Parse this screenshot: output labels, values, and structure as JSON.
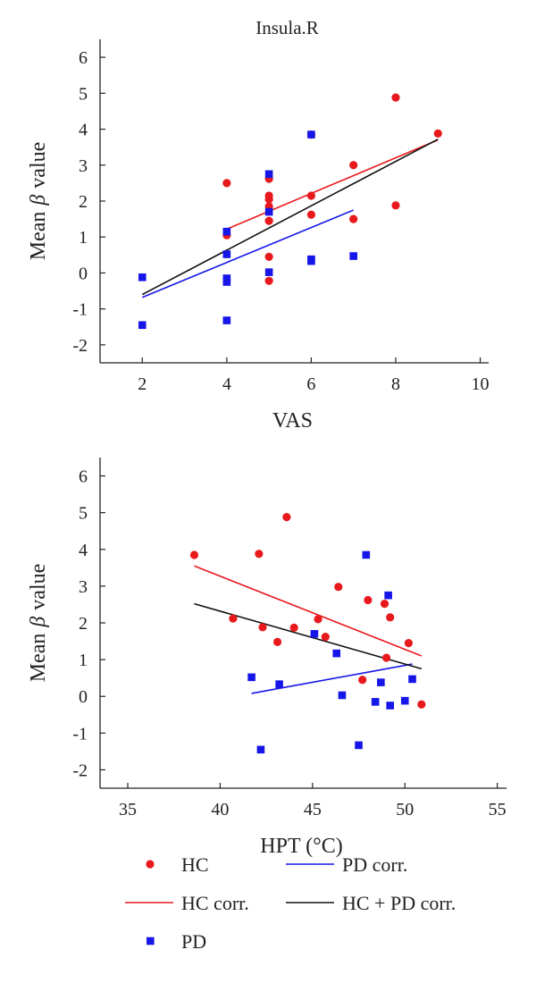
{
  "colors": {
    "hc": "#e8191c",
    "pd": "#1616e8",
    "combined": "#111111",
    "axis": "#222222"
  },
  "chart_data": [
    {
      "type": "scatter",
      "title": "Insula.R",
      "xlabel": "VAS",
      "ylabel": "Mean",
      "ylabel_symbol": "β",
      "ylabel_suffix": "value",
      "xlim": [
        1,
        10.2
      ],
      "ylim": [
        -2.5,
        6.5
      ],
      "xticks": [
        2,
        4,
        6,
        8,
        10
      ],
      "yticks": [
        -2,
        -1,
        0,
        1,
        2,
        3,
        4,
        5,
        6
      ],
      "series": [
        {
          "name": "HC",
          "kind": "points",
          "marker": "circle",
          "color_key": "hc",
          "points": [
            [
              4,
              2.5
            ],
            [
              4,
              1.05
            ],
            [
              5,
              2.62
            ],
            [
              5,
              2.15
            ],
            [
              5,
              2.05
            ],
            [
              5,
              1.85
            ],
            [
              5,
              1.45
            ],
            [
              5,
              0.45
            ],
            [
              5,
              -0.22
            ],
            [
              6,
              3.85
            ],
            [
              6,
              2.15
            ],
            [
              6,
              1.62
            ],
            [
              7,
              3.0
            ],
            [
              7,
              1.5
            ],
            [
              8,
              4.88
            ],
            [
              8,
              1.88
            ],
            [
              9,
              3.88
            ]
          ]
        },
        {
          "name": "PD",
          "kind": "points",
          "marker": "square",
          "color_key": "pd",
          "points": [
            [
              2,
              -0.12
            ],
            [
              2,
              -1.45
            ],
            [
              4,
              1.15
            ],
            [
              4,
              0.52
            ],
            [
              4,
              -0.15
            ],
            [
              4,
              -0.25
            ],
            [
              4,
              -1.32
            ],
            [
              5,
              2.75
            ],
            [
              5,
              1.7
            ],
            [
              5,
              0.02
            ],
            [
              6,
              3.85
            ],
            [
              6,
              0.38
            ],
            [
              6,
              0.33
            ],
            [
              7,
              0.47
            ]
          ]
        },
        {
          "name": "HC corr.",
          "kind": "line",
          "color_key": "hc",
          "points": [
            [
              4,
              1.22
            ],
            [
              9,
              3.7
            ]
          ]
        },
        {
          "name": "PD corr.",
          "kind": "line",
          "color_key": "pd",
          "points": [
            [
              2,
              -0.68
            ],
            [
              7,
              1.75
            ]
          ]
        },
        {
          "name": "HC + PD corr.",
          "kind": "line",
          "color_key": "combined",
          "points": [
            [
              2,
              -0.6
            ],
            [
              9,
              3.72
            ]
          ]
        }
      ]
    },
    {
      "type": "scatter",
      "title": "",
      "xlabel": "HPT (°C)",
      "ylabel": "Mean",
      "ylabel_symbol": "β",
      "ylabel_suffix": "value",
      "xlim": [
        33.5,
        55.5
      ],
      "ylim": [
        -2.5,
        6.5
      ],
      "xticks": [
        35,
        40,
        45,
        50,
        55
      ],
      "yticks": [
        -2,
        -1,
        0,
        1,
        2,
        3,
        4,
        5,
        6
      ],
      "series": [
        {
          "name": "HC",
          "kind": "points",
          "marker": "circle",
          "color_key": "hc",
          "points": [
            [
              38.6,
              3.85
            ],
            [
              40.7,
              2.12
            ],
            [
              42.1,
              3.88
            ],
            [
              42.3,
              1.88
            ],
            [
              43.1,
              1.48
            ],
            [
              43.6,
              4.88
            ],
            [
              44.0,
              1.87
            ],
            [
              45.3,
              2.1
            ],
            [
              45.7,
              1.62
            ],
            [
              46.4,
              2.98
            ],
            [
              47.7,
              0.45
            ],
            [
              48.0,
              2.62
            ],
            [
              48.9,
              2.52
            ],
            [
              49.0,
              1.05
            ],
            [
              49.2,
              2.15
            ],
            [
              50.2,
              1.45
            ],
            [
              50.9,
              -0.22
            ]
          ]
        },
        {
          "name": "PD",
          "kind": "points",
          "marker": "square",
          "color_key": "pd",
          "points": [
            [
              41.7,
              0.52
            ],
            [
              42.2,
              -1.45
            ],
            [
              43.2,
              0.33
            ],
            [
              45.1,
              1.7
            ],
            [
              46.3,
              1.17
            ],
            [
              46.6,
              0.03
            ],
            [
              47.5,
              -1.33
            ],
            [
              47.9,
              3.85
            ],
            [
              48.4,
              -0.15
            ],
            [
              48.7,
              0.38
            ],
            [
              49.1,
              2.75
            ],
            [
              49.2,
              -0.25
            ],
            [
              50.0,
              -0.12
            ],
            [
              50.4,
              0.47
            ]
          ]
        },
        {
          "name": "HC corr.",
          "kind": "line",
          "color_key": "hc",
          "points": [
            [
              38.6,
              3.55
            ],
            [
              50.9,
              1.1
            ]
          ]
        },
        {
          "name": "PD corr.",
          "kind": "line",
          "color_key": "pd",
          "points": [
            [
              41.7,
              0.08
            ],
            [
              50.4,
              0.88
            ]
          ]
        },
        {
          "name": "HC + PD corr.",
          "kind": "line",
          "color_key": "combined",
          "points": [
            [
              38.6,
              2.52
            ],
            [
              50.9,
              0.75
            ]
          ]
        }
      ]
    }
  ],
  "legend": {
    "items": [
      {
        "label": "HC",
        "kind": "circle",
        "color_key": "hc"
      },
      {
        "label": "PD corr.",
        "kind": "line",
        "color_key": "pd"
      },
      {
        "label": "HC corr.",
        "kind": "line",
        "color_key": "hc"
      },
      {
        "label": "HC + PD corr.",
        "kind": "line",
        "color_key": "combined"
      },
      {
        "label": "PD",
        "kind": "square",
        "color_key": "pd"
      }
    ]
  }
}
